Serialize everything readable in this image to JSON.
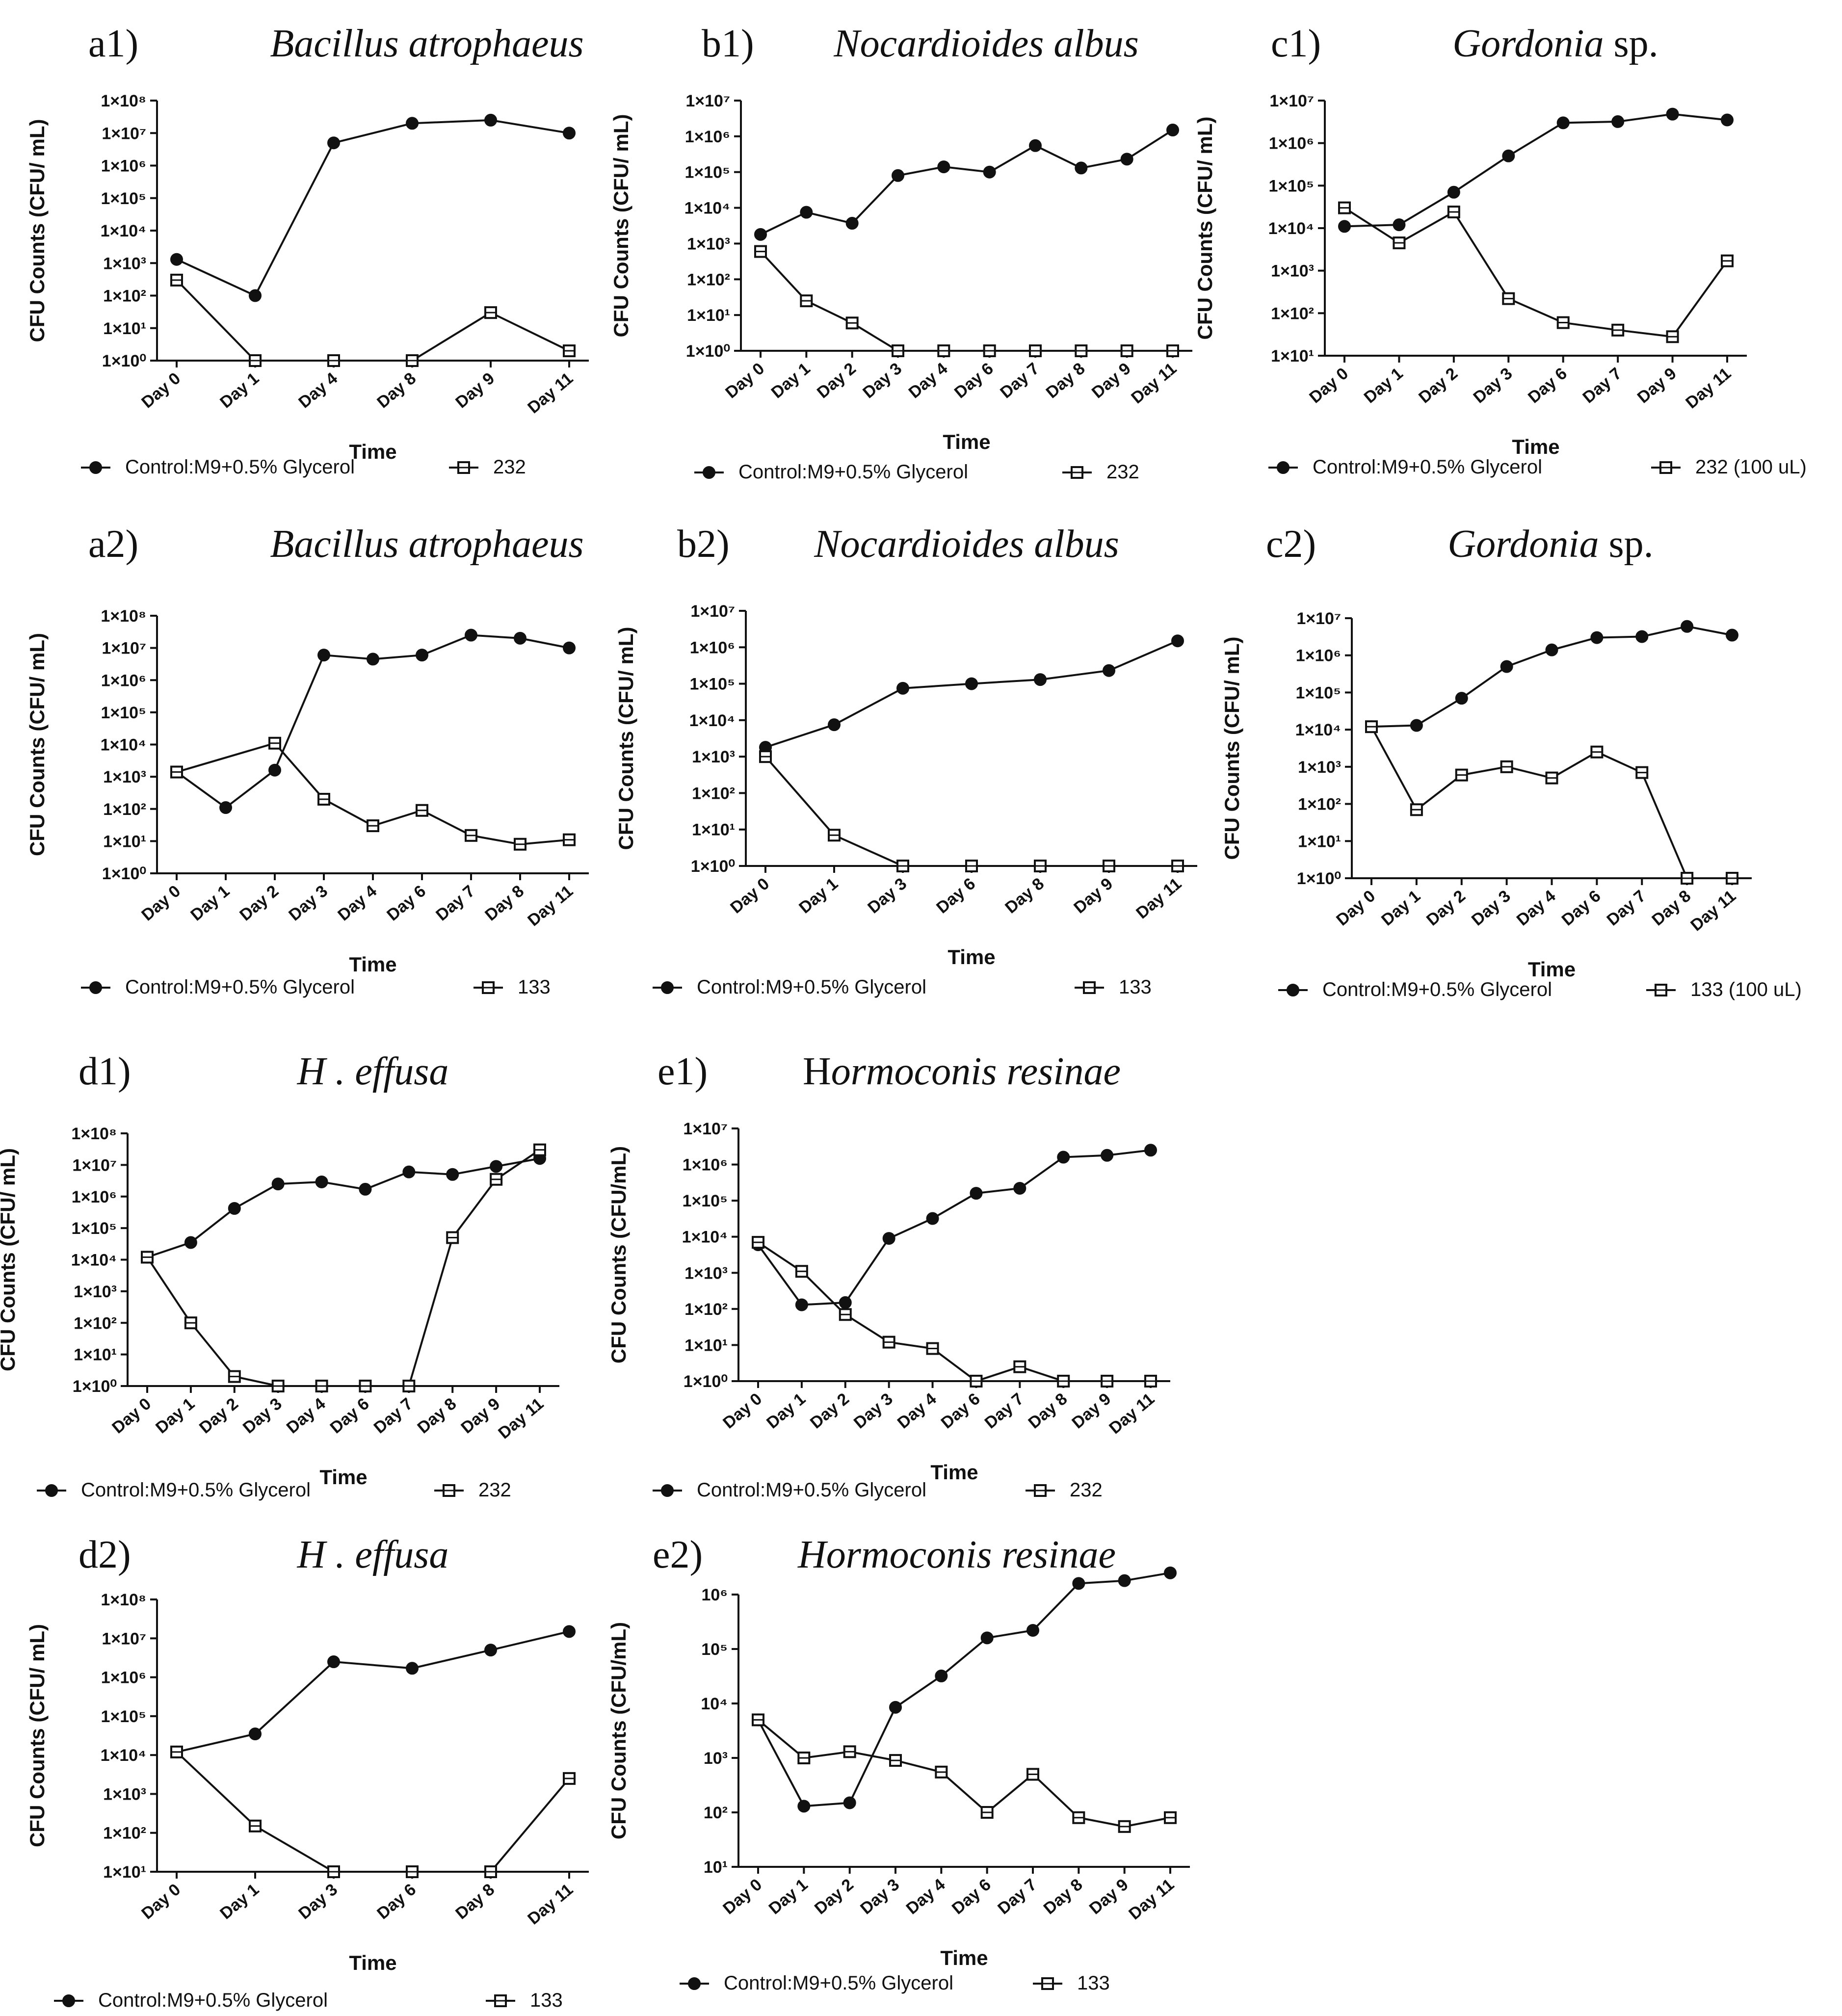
{
  "figure": {
    "x_axis_title": "Time",
    "y_axis_title": "CFU Counts (CFU/ mL)",
    "y_axis_title_alt": "CFU Counts (CFU/mL)",
    "colors": {
      "ink": "#111111",
      "marker_fill_open": "#ffffff"
    }
  },
  "chart_data": [
    {
      "id": "a1",
      "panel_label": "a1)",
      "title": "Bacillus atrophaeus",
      "type": "line",
      "yscale": "log",
      "ylabel": "CFU Counts (CFU/ mL)",
      "xlabel": "Time",
      "ylim_exp": [
        0,
        8
      ],
      "categories": [
        "Day 0",
        "Day 1",
        "Day 4",
        "Day 8",
        "Day 9",
        "Day 11"
      ],
      "series": [
        {
          "name": "Control:M9+0.5% Glycerol",
          "marker": "filled-circle",
          "values": [
            1300,
            100,
            5000000,
            20000000,
            25000000,
            10000000
          ]
        },
        {
          "name": "232",
          "marker": "open-square",
          "values": [
            300,
            1,
            1,
            1,
            30,
            2
          ]
        }
      ]
    },
    {
      "id": "b1",
      "panel_label": "b1)",
      "title": "Nocardioides albus",
      "type": "line",
      "yscale": "log",
      "ylabel": "CFU Counts (CFU/ mL)",
      "xlabel": "Time",
      "ylim_exp": [
        0,
        7
      ],
      "categories": [
        "Day 0",
        "Day 1",
        "Day 2",
        "Day 3",
        "Day 4",
        "Day 6",
        "Day 7",
        "Day 8",
        "Day 9",
        "Day 11"
      ],
      "series": [
        {
          "name": "Control:M9+0.5% Glycerol",
          "marker": "filled-circle",
          "values": [
            1800,
            7500,
            3700,
            80000,
            140000,
            100000,
            550000,
            130000,
            230000,
            1500000
          ]
        },
        {
          "name": "232",
          "marker": "open-square",
          "values": [
            600,
            25,
            6,
            1,
            1,
            1,
            1,
            1,
            1,
            1
          ]
        }
      ]
    },
    {
      "id": "c1",
      "panel_label": "c1)",
      "title": "Gordonia",
      "title_suffix": " sp.",
      "type": "line",
      "yscale": "log",
      "ylabel": "CFU Counts (CFU/ mL)",
      "xlabel": "Time",
      "ylim_exp": [
        1,
        7
      ],
      "categories": [
        "Day 0",
        "Day 1",
        "Day 2",
        "Day 3",
        "Day 6",
        "Day 7",
        "Day 9",
        "Day 11"
      ],
      "series": [
        {
          "name": "Control:M9+0.5% Glycerol",
          "marker": "filled-circle",
          "values": [
            11000,
            12000,
            70000,
            500000,
            3000000,
            3200000,
            4800000,
            3500000
          ]
        },
        {
          "name": "232 (100 uL)",
          "marker": "open-square",
          "values": [
            30000,
            4500,
            24000,
            220,
            60,
            40,
            28,
            1700
          ]
        }
      ]
    },
    {
      "id": "a2",
      "panel_label": "a2)",
      "title": "Bacillus atrophaeus",
      "type": "line",
      "yscale": "log",
      "ylabel": "CFU Counts (CFU/ mL)",
      "xlabel": "Time",
      "ylim_exp": [
        0,
        8
      ],
      "categories": [
        "Day 0",
        "Day 1",
        "Day 2",
        "Day 3",
        "Day 4",
        "Day 6",
        "Day 7",
        "Day 8",
        "Day 11"
      ],
      "series": [
        {
          "name": "Control:M9+0.5% Glycerol",
          "marker": "filled-circle",
          "values": [
            1400,
            110,
            1600,
            6000000,
            4500000,
            6000000,
            25000000,
            20000000,
            10000000
          ]
        },
        {
          "name": "133",
          "marker": "open-square",
          "values": [
            1400,
            null,
            11000,
            200,
            30,
            90,
            15,
            8,
            11
          ]
        }
      ]
    },
    {
      "id": "b2",
      "panel_label": "b2)",
      "title": "Nocardioides albus",
      "type": "line",
      "yscale": "log",
      "ylabel": "CFU Counts (CFU/ mL)",
      "xlabel": "Time",
      "ylim_exp": [
        0,
        7
      ],
      "categories": [
        "Day 0",
        "Day 1",
        "Day 3",
        "Day 6",
        "Day 8",
        "Day 9",
        "Day 11"
      ],
      "series": [
        {
          "name": "Control:M9+0.5% Glycerol",
          "marker": "filled-circle",
          "values": [
            1800,
            7500,
            75000,
            100000,
            130000,
            230000,
            1500000
          ]
        },
        {
          "name": "133",
          "marker": "open-square",
          "values": [
            1000,
            7,
            1,
            1,
            1,
            1,
            1
          ]
        }
      ]
    },
    {
      "id": "c2",
      "panel_label": "c2)",
      "title": "Gordonia",
      "title_suffix": " sp.",
      "type": "line",
      "yscale": "log",
      "ylabel": "CFU Counts (CFU/ mL)",
      "xlabel": "Time",
      "ylim_exp": [
        0,
        7
      ],
      "categories": [
        "Day 0",
        "Day 1",
        "Day 2",
        "Day 3",
        "Day 4",
        "Day 6",
        "Day 7",
        "Day 8",
        "Day 11"
      ],
      "series": [
        {
          "name": "Control:M9+0.5% Glycerol",
          "marker": "filled-circle",
          "values": [
            12000,
            13000,
            70000,
            500000,
            1400000,
            3000000,
            3200000,
            6000000,
            3500000
          ]
        },
        {
          "name": "133 (100 uL)",
          "marker": "open-square",
          "values": [
            12000,
            70,
            600,
            1000,
            500,
            2500,
            700,
            1,
            1
          ]
        }
      ]
    },
    {
      "id": "d1",
      "panel_label": "d1)",
      "title": "H . effusa",
      "type": "line",
      "yscale": "log",
      "ylabel": "CFU Counts (CFU/ mL)",
      "xlabel": "Time",
      "ylim_exp": [
        0,
        8
      ],
      "categories": [
        "Day 0",
        "Day 1",
        "Day 2",
        "Day 3",
        "Day 4",
        "Day 6",
        "Day 7",
        "Day 8",
        "Day 9",
        "Day 11"
      ],
      "series": [
        {
          "name": "Control:M9+0.5% Glycerol",
          "marker": "filled-circle",
          "values": [
            12000,
            35000,
            420000,
            2500000,
            2900000,
            1700000,
            6000000,
            5000000,
            9000000,
            16000000
          ]
        },
        {
          "name": "232",
          "marker": "open-square",
          "values": [
            12000,
            100,
            2,
            1,
            1,
            1,
            1,
            50000,
            3500000,
            30000000
          ]
        }
      ]
    },
    {
      "id": "e1",
      "panel_label": "e1)",
      "title": "Hormoconis resinae",
      "title_upright_prefix": "H",
      "title_rest": "ormoconis resinae",
      "type": "line",
      "yscale": "log",
      "ylabel": "CFU Counts (CFU/mL)",
      "xlabel": "Time",
      "ylim_exp": [
        0,
        7
      ],
      "categories": [
        "Day 0",
        "Day 1",
        "Day 2",
        "Day 3",
        "Day 4",
        "Day 6",
        "Day 7",
        "Day 8",
        "Day 9",
        "Day 11"
      ],
      "series": [
        {
          "name": "Control:M9+0.5% Glycerol",
          "marker": "filled-circle",
          "values": [
            6000,
            130,
            150,
            9000,
            32000,
            160000,
            220000,
            1600000,
            1800000,
            2500000
          ]
        },
        {
          "name": "232",
          "marker": "open-square",
          "values": [
            7000,
            1100,
            70,
            12,
            8,
            1,
            2.5,
            1,
            1,
            1
          ]
        }
      ]
    },
    {
      "id": "d2",
      "panel_label": "d2)",
      "title": "H . effusa",
      "type": "line",
      "yscale": "log",
      "ylabel": "CFU Counts (CFU/ mL)",
      "xlabel": "Time",
      "ylim_exp": [
        1,
        8
      ],
      "categories": [
        "Day 0",
        "Day 1",
        "Day 3",
        "Day 6",
        "Day 8",
        "Day 11"
      ],
      "series": [
        {
          "name": "Control:M9+0.5% Glycerol",
          "marker": "filled-circle",
          "values": [
            12000,
            35000,
            2500000,
            1700000,
            5000000,
            15000000
          ]
        },
        {
          "name": "133",
          "marker": "open-square",
          "values": [
            12000,
            150,
            10,
            10,
            10,
            2500
          ]
        }
      ]
    },
    {
      "id": "e2",
      "panel_label": "e2)",
      "title": "Hormoconis resinae",
      "type": "line",
      "yscale": "log",
      "ylabel": "CFU Counts (CFU/mL)",
      "xlabel": "Time",
      "ylim_exp": [
        1,
        6
      ],
      "tick_style": "power",
      "categories": [
        "Day 0",
        "Day 1",
        "Day 2",
        "Day 3",
        "Day 4",
        "Day 6",
        "Day 7",
        "Day 8",
        "Day 9",
        "Day 11"
      ],
      "series": [
        {
          "name": "Control:M9+0.5% Glycerol",
          "marker": "filled-circle",
          "values": [
            5000,
            130,
            150,
            8500,
            32000,
            160000,
            220000,
            1600000,
            1800000,
            2500000
          ]
        },
        {
          "name": "133",
          "marker": "open-square",
          "values": [
            5000,
            1000,
            1300,
            900,
            550,
            100,
            500,
            80,
            55,
            80
          ]
        }
      ]
    }
  ]
}
